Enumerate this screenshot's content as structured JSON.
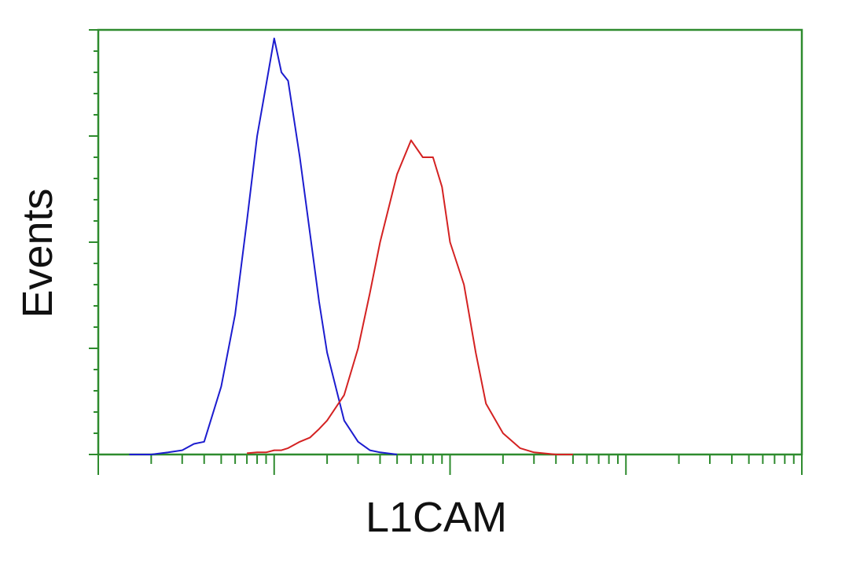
{
  "chart_data": {
    "type": "line",
    "x_axis_label": "L1CAM",
    "y_axis_label": "Events",
    "x": [
      1.5,
      2,
      2.5,
      3,
      3.5,
      4,
      5,
      6,
      7,
      8,
      9,
      10,
      11,
      12,
      14,
      16,
      18,
      20,
      25,
      30,
      35,
      40,
      50,
      60,
      70,
      80,
      90,
      100,
      120,
      140,
      160,
      200,
      250,
      300,
      400,
      500
    ],
    "series": [
      {
        "color": "#1c1ccf",
        "values": [
          0,
          0,
          0.5,
          1,
          2.5,
          3,
          16,
          33,
          55,
          75,
          87,
          98,
          90,
          88,
          70,
          52,
          36,
          24,
          8,
          3,
          1,
          0.5,
          0,
          null,
          null,
          null,
          null,
          null,
          null,
          null,
          null,
          null,
          null,
          null,
          null,
          null
        ]
      },
      {
        "color": "#d42222",
        "values": [
          null,
          null,
          null,
          null,
          null,
          null,
          null,
          null,
          0.3,
          0.5,
          0.5,
          1,
          1,
          1.5,
          3,
          4,
          6,
          8,
          14,
          25,
          38,
          50,
          66,
          74,
          70,
          70,
          63,
          50,
          40,
          24,
          12,
          5,
          1.5,
          0.5,
          0,
          0
        ]
      }
    ],
    "xlim": [
      1,
      10000
    ],
    "x_log_scale": true,
    "xticks": [
      1,
      2,
      3,
      4,
      5,
      6,
      7,
      8,
      9,
      10,
      20,
      30,
      40,
      50,
      60,
      70,
      80,
      90,
      100,
      200,
      300,
      400,
      500,
      600,
      700,
      800,
      900,
      1000,
      2000,
      3000,
      4000,
      5000,
      6000,
      7000,
      8000,
      9000,
      10000
    ],
    "ylim": [
      0,
      100
    ],
    "yticks": [
      0,
      5,
      10,
      15,
      20,
      25,
      30,
      35,
      40,
      45,
      50,
      55,
      60,
      65,
      70,
      75,
      80,
      85,
      90,
      95,
      100
    ],
    "axis_color": "#2e8b2e"
  }
}
